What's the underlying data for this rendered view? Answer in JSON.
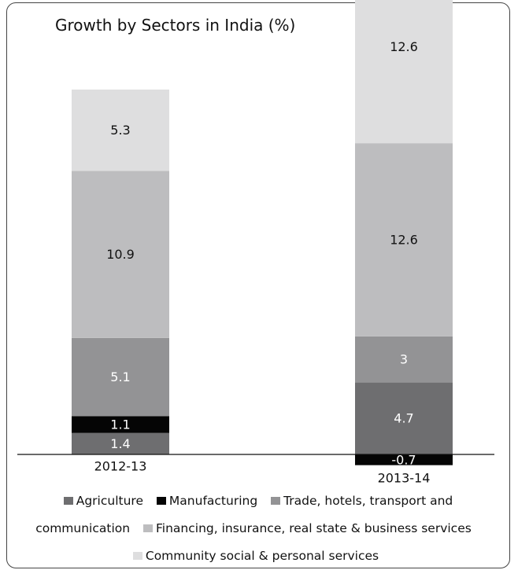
{
  "chart_data": {
    "type": "bar",
    "stacked": true,
    "title": "Growth by Sectors in India (%)",
    "xlabel": "",
    "ylabel": "",
    "categories": [
      "2012-13",
      "2013-14"
    ],
    "series": [
      {
        "name": "Agriculture",
        "values": [
          1.4,
          4.7
        ],
        "value_labels": [
          "1.4",
          "4.7"
        ],
        "color": "#6e6e70",
        "label_color": "#ffffff"
      },
      {
        "name": "Manufacturing",
        "values": [
          1.1,
          -0.7
        ],
        "value_labels": [
          "1.1",
          "-0.7"
        ],
        "color": "#050505",
        "label_color": "#ffffff"
      },
      {
        "name": "Trade, hotels, transport and communication",
        "values": [
          5.1,
          3
        ],
        "value_labels": [
          "5.1",
          "3"
        ],
        "color": "#939395",
        "label_color": "#ffffff"
      },
      {
        "name": "Financing, insurance, real state & business services",
        "values": [
          10.9,
          12.6
        ],
        "value_labels": [
          "10.9",
          "12.6"
        ],
        "color": "#bdbdbf",
        "label_color": "#111111"
      },
      {
        "name": "Community social & personal services",
        "values": [
          5.3,
          12.6
        ],
        "value_labels": [
          "5.3",
          "12.6"
        ],
        "color": "#dededf",
        "label_color": "#111111"
      }
    ],
    "grid": false,
    "legend_position": "bottom"
  }
}
